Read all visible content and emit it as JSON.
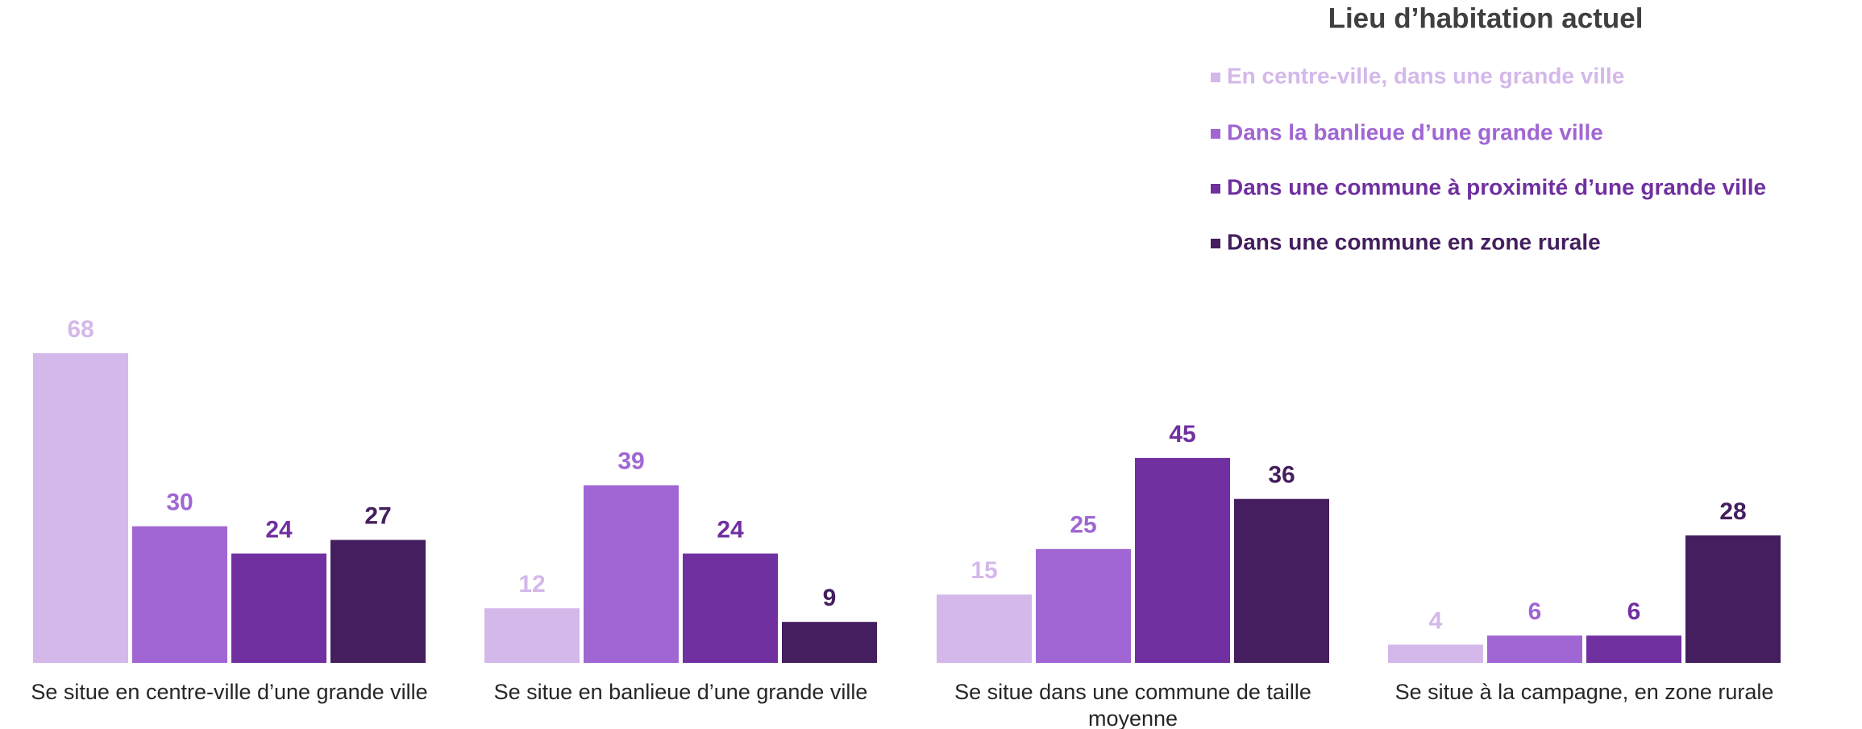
{
  "chart_data": {
    "type": "bar",
    "legend_title": "Lieu d’habitation actuel",
    "legend": "top-right",
    "categories": [
      "Se situe en centre-ville d’une grande ville",
      "Se situe en banlieue d’une grande ville",
      "Se situe dans une commune de taille moyenne",
      "Se situe à la campagne, en zone rurale"
    ],
    "series": [
      {
        "name": "En centre-ville, dans une grande ville",
        "color": "#d4b8ea",
        "values": [
          68,
          12,
          15,
          4
        ]
      },
      {
        "name": "Dans la banlieue d’une grande ville",
        "color": "#a066d3",
        "values": [
          30,
          39,
          25,
          6
        ]
      },
      {
        "name": "Dans une commune à proximité d’une grande ville",
        "color": "#7030a0",
        "values": [
          24,
          24,
          45,
          6
        ]
      },
      {
        "name": "Dans une commune en zone rurale",
        "color": "#441e5e",
        "values": [
          27,
          9,
          36,
          28
        ]
      }
    ]
  }
}
